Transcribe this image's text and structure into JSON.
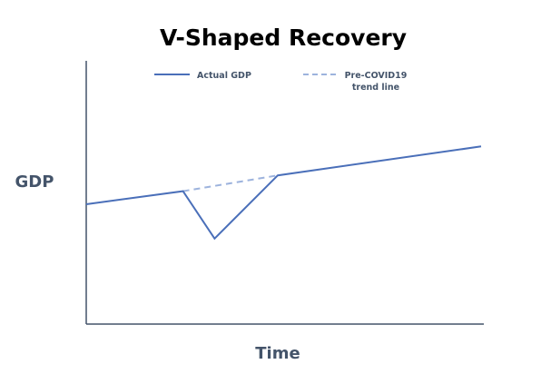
{
  "chart_data": {
    "type": "line",
    "title": "V-Shaped Recovery",
    "xlabel": "Time",
    "ylabel": "GDP",
    "xlim": [
      0,
      100
    ],
    "ylim": [
      0,
      100
    ],
    "ticks": false,
    "grid": false,
    "legend_position": "top-center",
    "series": [
      {
        "name": "Actual GDP",
        "style": "solid",
        "color": "#4a6fb9",
        "x": [
          0,
          24.5,
          32.5,
          48.5,
          100
        ],
        "y": [
          45.5,
          50.5,
          32.5,
          56.5,
          67.5
        ]
      },
      {
        "name": "Pre-COVID19 trend line",
        "style": "dashed",
        "color": "#9db3dd",
        "x": [
          24.5,
          48.5
        ],
        "y": [
          50.5,
          56.5
        ]
      }
    ],
    "legend": [
      {
        "name": "Actual GDP",
        "lines": [
          "Actual GDP"
        ]
      },
      {
        "name": "Pre-COVID19 trend line",
        "lines": [
          "Pre-COVID19",
          "trend line"
        ]
      }
    ],
    "axis_color": "#44546a"
  }
}
